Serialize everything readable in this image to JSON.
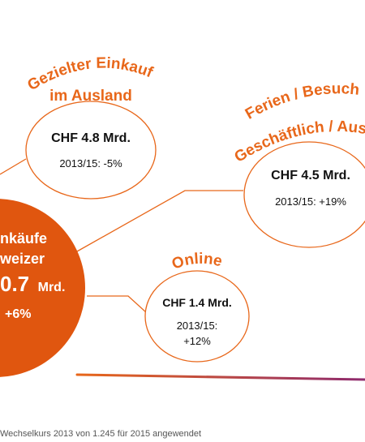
{
  "main_bubble": {
    "line1": "nkäufe",
    "line2": "weizer",
    "value_num": "0.7",
    "value_unit": "Mrd.",
    "change": "+6%",
    "color": "#e0560f"
  },
  "bubbles": [
    {
      "title_line1": "Gezielter Einkauf",
      "title_line2": "im Ausland",
      "value": "CHF 4.8 Mrd.",
      "change": "2013/15: -5%"
    },
    {
      "title_line1": "Ferien / Besuch",
      "title_line2": "Geschäftlich / Aus",
      "value": "CHF 4.5 Mrd.",
      "change": "2013/15: +19%"
    },
    {
      "title_line1": "Online",
      "value": "CHF 1.4 Mrd.",
      "change_line1": "2013/15:",
      "change_line2": "+12%"
    }
  ],
  "footnote": "Wechselkurs 2013 von 1.245 für 2015 angewendet",
  "colors": {
    "accent": "#e8671a",
    "connector": "#e8671a",
    "bubble_outline": "#e8671a",
    "bottom_line": "#c0392b"
  }
}
